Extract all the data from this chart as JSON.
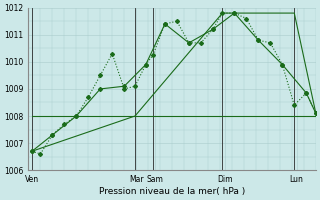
{
  "background_color": "#cce8e8",
  "grid_color": "#aacccc",
  "line_color": "#1a6b1a",
  "dark_line_color": "#2a2a2a",
  "xlabel": "Pression niveau de la mer( hPa )",
  "ylim": [
    1006,
    1012
  ],
  "ytick_labels": [
    "1006",
    "1007",
    "1008",
    "1009",
    "1010",
    "1011",
    "1012"
  ],
  "ytick_vals": [
    1006,
    1007,
    1008,
    1009,
    1010,
    1011,
    1012
  ],
  "xlim": [
    0,
    12
  ],
  "day_labels": [
    "Ven",
    "Mar",
    "Sam",
    "Dim",
    "Lun"
  ],
  "day_x": [
    0.15,
    4.5,
    5.3,
    8.2,
    11.2
  ],
  "vline_x": [
    0.15,
    4.45,
    5.2,
    8.1,
    11.1
  ],
  "series1_x": [
    0.15,
    0.5,
    1.0,
    1.5,
    2.0,
    2.5,
    3.0,
    3.5,
    4.0,
    4.45,
    4.9,
    5.2,
    5.7,
    6.2,
    6.7,
    7.2,
    7.7,
    8.1,
    8.6,
    9.1,
    9.6,
    10.1,
    10.6,
    11.1,
    11.6,
    12.0
  ],
  "series1_y": [
    1006.7,
    1006.6,
    1007.3,
    1007.7,
    1008.0,
    1008.7,
    1009.5,
    1010.3,
    1009.0,
    1009.1,
    1009.9,
    1010.25,
    1011.4,
    1011.5,
    1010.7,
    1010.7,
    1011.2,
    1011.8,
    1011.8,
    1011.6,
    1010.8,
    1010.7,
    1009.9,
    1008.4,
    1008.85,
    1008.1
  ],
  "series2_x": [
    0.15,
    1.0,
    2.0,
    3.0,
    4.0,
    4.9,
    5.7,
    6.7,
    7.7,
    8.6,
    9.6,
    10.6,
    11.6,
    12.0
  ],
  "series2_y": [
    1006.7,
    1007.3,
    1008.0,
    1009.0,
    1009.1,
    1009.9,
    1011.4,
    1010.7,
    1011.2,
    1011.8,
    1010.8,
    1009.9,
    1008.85,
    1008.1
  ],
  "series3_x": [
    0.15,
    4.45,
    8.1,
    11.1,
    12.0
  ],
  "series3_y": [
    1006.7,
    1008.0,
    1011.8,
    1011.8,
    1008.1
  ],
  "hline1_x": [
    0.15,
    4.45
  ],
  "hline1_y": [
    1008.0,
    1008.0
  ],
  "hline2_x": [
    4.45,
    12.0
  ],
  "hline2_y": [
    1008.0,
    1008.0
  ],
  "linewidth": 0.8,
  "marker": "D",
  "markersize": 2.0,
  "hline_linewidth": 0.8
}
